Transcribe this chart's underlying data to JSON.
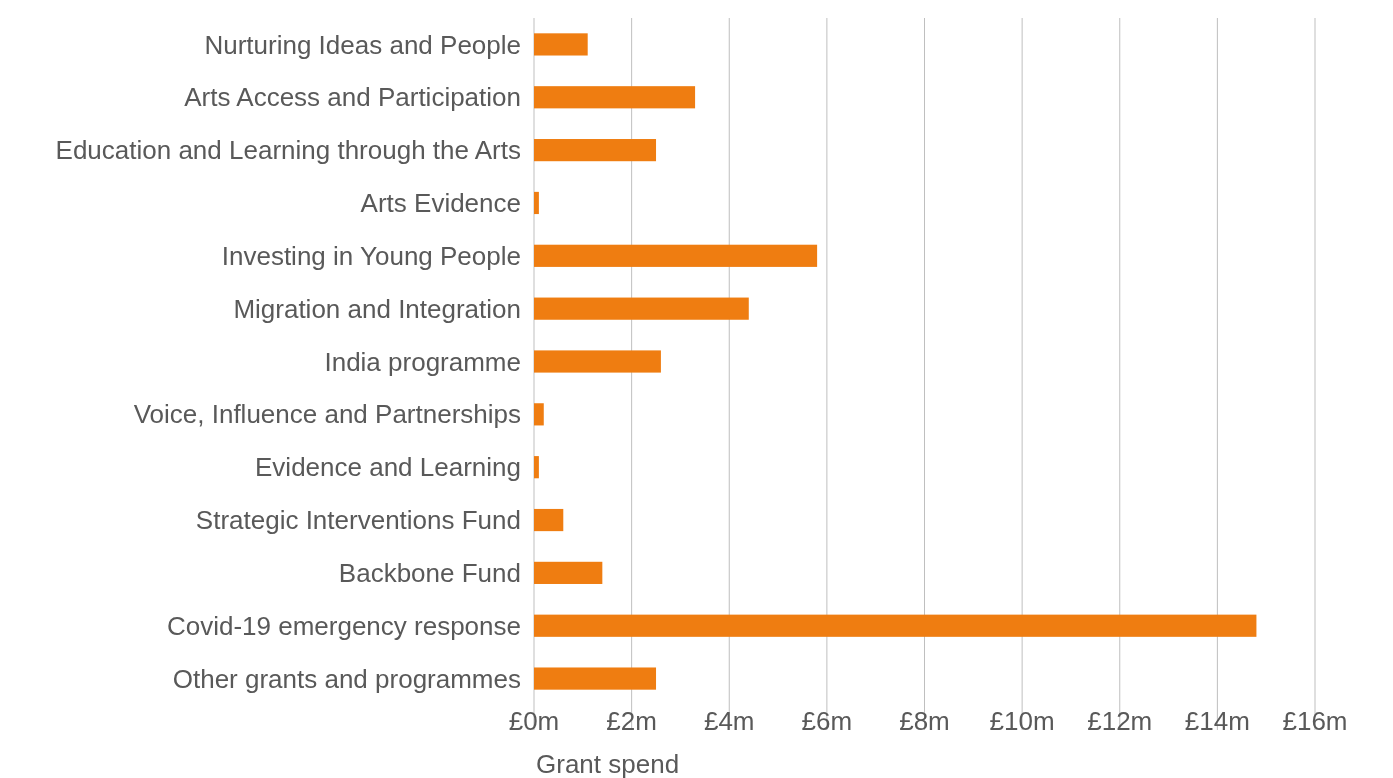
{
  "chart_data": {
    "type": "bar",
    "orientation": "horizontal",
    "xlabel": "Grant spend",
    "categories": [
      "Nurturing Ideas and People",
      "Arts Access and Participation",
      "Education and Learning through the Arts",
      "Arts Evidence",
      "Investing in Young People",
      "Migration and Integration",
      "India programme",
      "Voice, Influence and Partnerships",
      "Evidence and Learning",
      "Strategic Interventions Fund",
      "Backbone Fund",
      "Covid-19 emergency response",
      "Other grants and programmes"
    ],
    "values": [
      1.1,
      3.3,
      2.5,
      0.1,
      5.8,
      4.4,
      2.6,
      0.2,
      0.1,
      0.6,
      1.4,
      14.8,
      2.5
    ],
    "color": "#ef7d11",
    "xlim": [
      0,
      16
    ],
    "xticks": [
      {
        "value": 0,
        "label": "£0m"
      },
      {
        "value": 2,
        "label": "£2m"
      },
      {
        "value": 4,
        "label": "£4m"
      },
      {
        "value": 6,
        "label": "£6m"
      },
      {
        "value": 8,
        "label": "£8m"
      },
      {
        "value": 10,
        "label": "£10m"
      },
      {
        "value": 12,
        "label": "£12m"
      },
      {
        "value": 14,
        "label": "£14m"
      },
      {
        "value": 16,
        "label": "£16m"
      }
    ],
    "grid": "x"
  }
}
